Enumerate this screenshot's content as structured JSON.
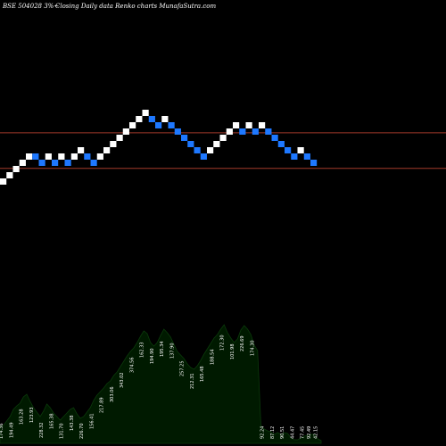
{
  "header": {
    "left": "BSE 504028  3%~",
    "right": "Closing Daily data  Renko  charts MunafaSutra.com"
  },
  "chart_data": {
    "type": "renko",
    "interval": "daily",
    "box_pct": 3,
    "colors": {
      "up": "#ffffff",
      "down": "#1e78ff",
      "background": "#000000",
      "volume": "#001a00",
      "volume_edge": "#0b3a0b",
      "reference_line": "#a33a2a",
      "label": "#ffffff"
    },
    "bricks": [
      {
        "dir": "up",
        "level": 0
      },
      {
        "dir": "up",
        "level": 1
      },
      {
        "dir": "up",
        "level": 2
      },
      {
        "dir": "up",
        "level": 3
      },
      {
        "dir": "up",
        "level": 4
      },
      {
        "dir": "down",
        "level": 4
      },
      {
        "dir": "down",
        "level": 3
      },
      {
        "dir": "up",
        "level": 4
      },
      {
        "dir": "down",
        "level": 3
      },
      {
        "dir": "up",
        "level": 4
      },
      {
        "dir": "down",
        "level": 3
      },
      {
        "dir": "up",
        "level": 4
      },
      {
        "dir": "up",
        "level": 5
      },
      {
        "dir": "down",
        "level": 4
      },
      {
        "dir": "down",
        "level": 3
      },
      {
        "dir": "up",
        "level": 4
      },
      {
        "dir": "up",
        "level": 5
      },
      {
        "dir": "up",
        "level": 6
      },
      {
        "dir": "up",
        "level": 7
      },
      {
        "dir": "up",
        "level": 8
      },
      {
        "dir": "up",
        "level": 9
      },
      {
        "dir": "up",
        "level": 10
      },
      {
        "dir": "up",
        "level": 11
      },
      {
        "dir": "down",
        "level": 10
      },
      {
        "dir": "down",
        "level": 9
      },
      {
        "dir": "up",
        "level": 10
      },
      {
        "dir": "down",
        "level": 9
      },
      {
        "dir": "down",
        "level": 8
      },
      {
        "dir": "down",
        "level": 7
      },
      {
        "dir": "down",
        "level": 6
      },
      {
        "dir": "down",
        "level": 5
      },
      {
        "dir": "down",
        "level": 4
      },
      {
        "dir": "up",
        "level": 5
      },
      {
        "dir": "up",
        "level": 6
      },
      {
        "dir": "up",
        "level": 7
      },
      {
        "dir": "up",
        "level": 8
      },
      {
        "dir": "up",
        "level": 9
      },
      {
        "dir": "down",
        "level": 8
      },
      {
        "dir": "up",
        "level": 9
      },
      {
        "dir": "down",
        "level": 8
      },
      {
        "dir": "up",
        "level": 9
      },
      {
        "dir": "down",
        "level": 8
      },
      {
        "dir": "down",
        "level": 7
      },
      {
        "dir": "down",
        "level": 6
      },
      {
        "dir": "down",
        "level": 5
      },
      {
        "dir": "down",
        "level": 4
      },
      {
        "dir": "up",
        "level": 5
      },
      {
        "dir": "down",
        "level": 4
      },
      {
        "dir": "down",
        "level": 3
      }
    ],
    "reference_levels": [
      8.3,
      2.6
    ],
    "volume_profile": [
      20,
      20,
      25,
      30,
      38,
      42,
      45,
      52,
      55,
      47,
      40,
      35,
      30,
      36,
      44,
      40,
      34,
      30,
      26,
      30,
      34,
      38,
      40,
      33,
      28,
      30,
      35,
      40,
      48,
      54,
      58,
      62,
      67,
      70,
      76,
      80,
      86,
      92,
      98,
      103,
      107,
      113,
      120,
      126,
      123,
      113,
      109,
      113,
      121,
      128,
      124,
      119,
      111,
      103,
      99,
      95,
      89,
      85,
      83,
      87,
      93,
      100,
      106,
      112,
      118,
      122,
      128,
      133,
      124,
      118,
      113,
      117,
      127,
      132,
      128,
      122,
      110,
      104,
      20,
      16,
      14,
      13,
      10,
      12,
      10,
      12,
      11,
      6,
      4,
      4,
      6,
      8,
      9,
      10,
      10,
      5,
      3
    ],
    "volume_labels": [
      {
        "i": 0,
        "text": "174.36"
      },
      {
        "i": 3,
        "text": "194.49"
      },
      {
        "i": 6,
        "text": "163.28"
      },
      {
        "i": 9,
        "text": "123.93"
      },
      {
        "i": 12,
        "text": "228.32"
      },
      {
        "i": 15,
        "text": "165.38"
      },
      {
        "i": 18,
        "text": "131.70"
      },
      {
        "i": 21,
        "text": "143.38"
      },
      {
        "i": 24,
        "text": "226.70"
      },
      {
        "i": 27,
        "text": "156.41"
      },
      {
        "i": 30,
        "text": "217.89"
      },
      {
        "i": 33,
        "text": "303.06"
      },
      {
        "i": 36,
        "text": "343.02"
      },
      {
        "i": 39,
        "text": "374.56"
      },
      {
        "i": 42,
        "text": "162.33"
      },
      {
        "i": 45,
        "text": "194.90"
      },
      {
        "i": 48,
        "text": "195.34"
      },
      {
        "i": 51,
        "text": "137.90"
      },
      {
        "i": 54,
        "text": "257.25"
      },
      {
        "i": 57,
        "text": "212.31"
      },
      {
        "i": 60,
        "text": "165.48"
      },
      {
        "i": 63,
        "text": "188.54"
      },
      {
        "i": 66,
        "text": "172.30"
      },
      {
        "i": 69,
        "text": "101.98"
      },
      {
        "i": 72,
        "text": "226.69"
      },
      {
        "i": 75,
        "text": "174.30"
      },
      {
        "i": 78,
        "text": "92.24"
      },
      {
        "i": 81,
        "text": "87.12"
      },
      {
        "i": 84,
        "text": "90.51"
      },
      {
        "i": 87,
        "text": "44.47"
      },
      {
        "i": 90,
        "text": "77.45"
      },
      {
        "i": 92,
        "text": "92.49"
      },
      {
        "i": 94,
        "text": "42.15"
      }
    ]
  }
}
